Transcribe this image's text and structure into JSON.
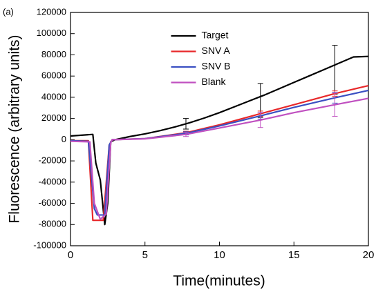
{
  "chart_data": {
    "type": "line",
    "panel_label": "(a)",
    "x_label": "Time(minutes)",
    "y_label": "Fluorescence (arbitrary units)",
    "xlim": [
      0,
      20
    ],
    "xticks": [
      0,
      5,
      10,
      15,
      20
    ],
    "ylim": [
      -100000,
      120000
    ],
    "yticks": [
      -100000,
      -80000,
      -60000,
      -40000,
      -20000,
      0,
      20000,
      40000,
      60000,
      80000,
      100000,
      120000
    ],
    "legend": "upper-center",
    "series": [
      {
        "name": "Target",
        "color": "#000000",
        "x": [
          0,
          1.5,
          1.7,
          2.0,
          2.3,
          2.5,
          2.7,
          3,
          4,
          5,
          6,
          7,
          8,
          9,
          10,
          11,
          12,
          13,
          14,
          15,
          16,
          17,
          18,
          19,
          20
        ],
        "values": [
          3500,
          5000,
          -22000,
          -38000,
          -80000,
          -60000,
          -2000,
          0,
          3000,
          5500,
          8500,
          12000,
          16000,
          20500,
          25500,
          31000,
          36500,
          42000,
          48000,
          54000,
          60000,
          66000,
          72000,
          78000,
          78500
        ],
        "error_bars": {
          "x": [
            7.75,
            12.75,
            17.75
          ],
          "values": [
            15000,
            37000,
            66000
          ],
          "errors": [
            5000,
            16000,
            23000
          ]
        }
      },
      {
        "name": "SNV A",
        "color": "#e8282a",
        "x": [
          0,
          1.2,
          1.5,
          2.2,
          2.6,
          2.8,
          5,
          7.75,
          10,
          12.75,
          15,
          17.75,
          20
        ],
        "values": [
          -1000,
          -1000,
          -76000,
          -76000,
          -5000,
          0,
          1000,
          6500,
          14000,
          24500,
          33000,
          43500,
          51000
        ],
        "error_bars": {
          "x": [
            7.75,
            12.75,
            17.75
          ],
          "values": [
            6500,
            24500,
            43500
          ],
          "errors": [
            1500,
            2500,
            2500
          ]
        }
      },
      {
        "name": "SNV B",
        "color": "#3a4fc2",
        "x": [
          0,
          1.2,
          1.6,
          1.8,
          2.3,
          2.6,
          2.8,
          5,
          7.75,
          10,
          12.75,
          15,
          17.75,
          20
        ],
        "values": [
          -1000,
          -1500,
          -65000,
          -71000,
          -71000,
          -5000,
          0,
          1000,
          6000,
          13000,
          22500,
          30500,
          39500,
          46500
        ],
        "error_bars": {
          "x": [
            7.75,
            12.75,
            17.75
          ],
          "values": [
            6000,
            22500,
            39500
          ],
          "errors": [
            1500,
            3000,
            5000
          ]
        }
      },
      {
        "name": "Blank",
        "color": "#c050c0",
        "x": [
          0,
          1.3,
          1.6,
          2.0,
          2.4,
          2.7,
          2.8,
          5,
          7.75,
          10,
          12.75,
          15,
          17.75,
          20
        ],
        "values": [
          -1500,
          -2000,
          -60000,
          -75000,
          -70000,
          -3000,
          0,
          800,
          5000,
          11000,
          18500,
          25500,
          33000,
          39000
        ],
        "error_bars": {
          "x": [
            7.75,
            12.75,
            17.75
          ],
          "values": [
            5000,
            18500,
            33000
          ],
          "errors": [
            2000,
            7000,
            11000
          ]
        }
      }
    ]
  }
}
